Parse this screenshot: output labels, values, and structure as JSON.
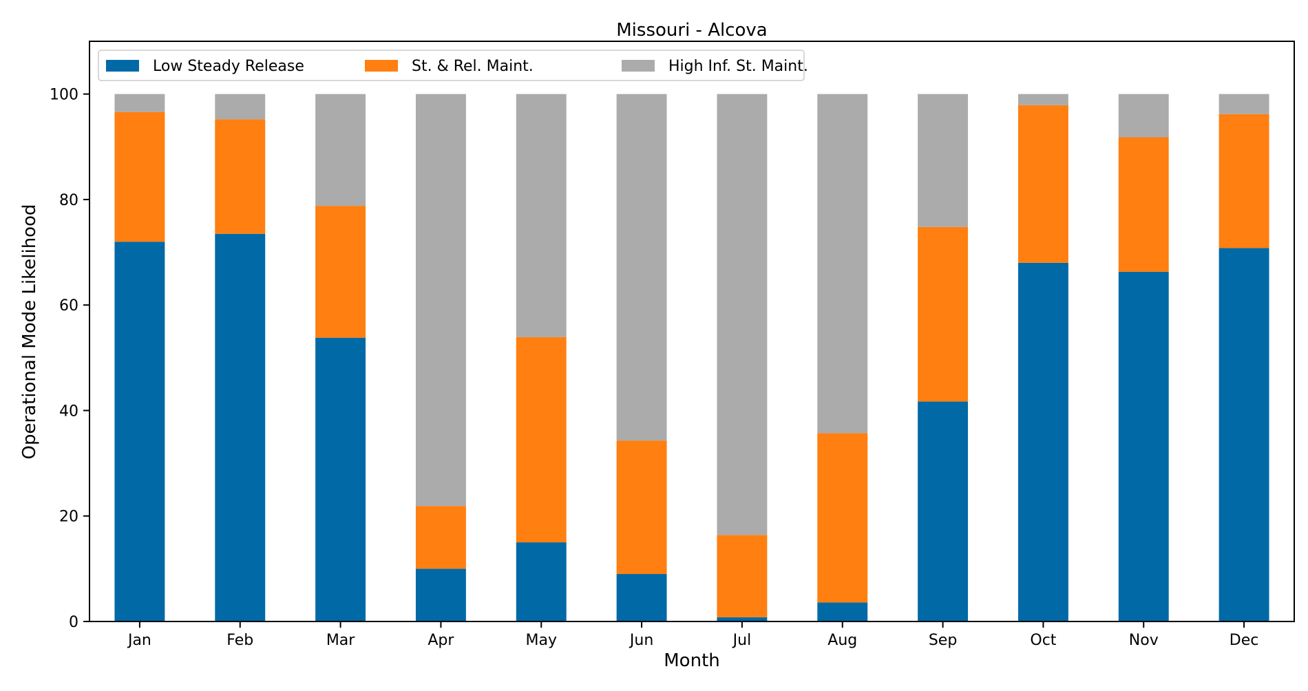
{
  "chart_data": {
    "type": "bar",
    "stacked": true,
    "title": "Missouri - Alcova",
    "xlabel": "Month",
    "ylabel": "Operational Mode Likelihood",
    "ylim": [
      0,
      110
    ],
    "yticks": [
      "0",
      "20",
      "40",
      "60",
      "80",
      "100"
    ],
    "grid": false,
    "legend_position": "top-left",
    "categories": [
      "Jan",
      "Feb",
      "Mar",
      "Apr",
      "May",
      "Jun",
      "Jul",
      "Aug",
      "Sep",
      "Oct",
      "Nov",
      "Dec"
    ],
    "series": [
      {
        "name": "Low Steady Release",
        "color": "#0069a6",
        "values": [
          72.0,
          73.5,
          53.8,
          10.0,
          15.0,
          9.0,
          0.8,
          3.6,
          41.7,
          68.0,
          66.3,
          70.8
        ]
      },
      {
        "name": "St. & Rel. Maint.",
        "color": "#ff7f10",
        "values": [
          24.6,
          21.7,
          25.0,
          11.9,
          38.9,
          25.3,
          15.6,
          32.1,
          33.1,
          29.9,
          25.5,
          25.4
        ]
      },
      {
        "name": "High Inf. St. Maint.",
        "color": "#ababab",
        "values": [
          3.4,
          4.8,
          21.2,
          78.1,
          46.1,
          65.7,
          83.6,
          64.3,
          25.2,
          2.1,
          8.2,
          3.8
        ]
      }
    ]
  }
}
